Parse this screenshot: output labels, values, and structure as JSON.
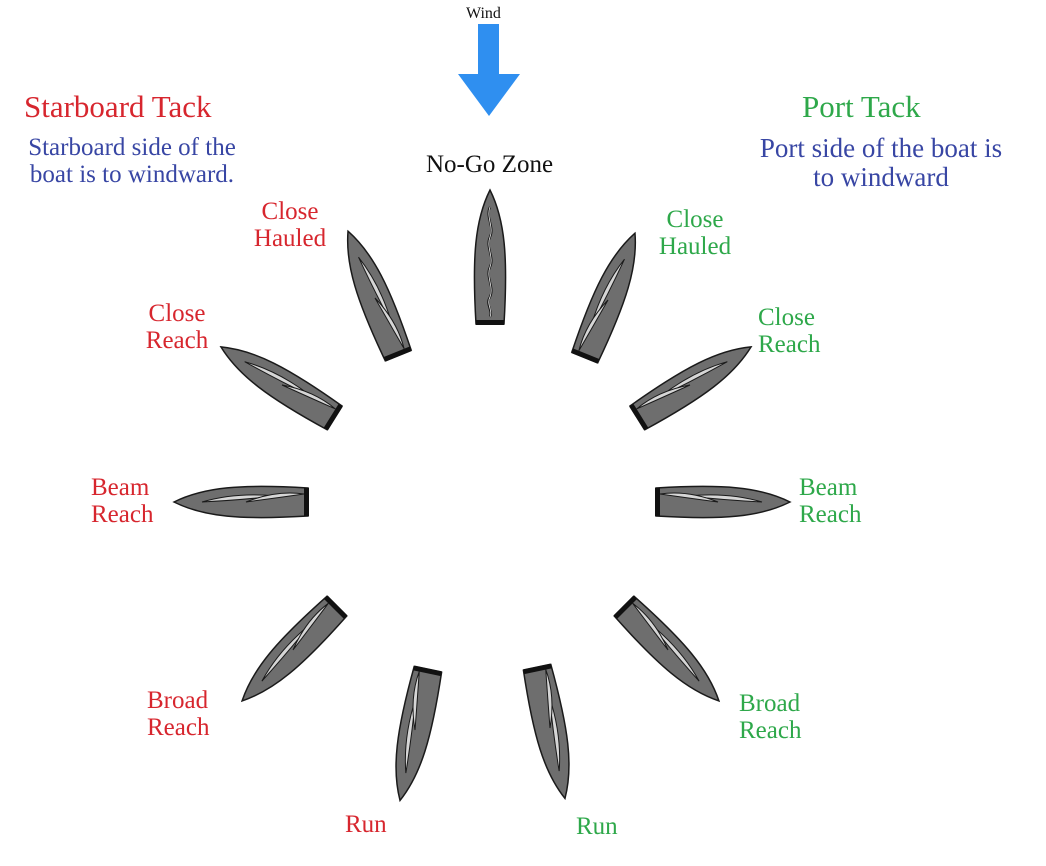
{
  "wind": {
    "label": "Wind",
    "arrow_color": "#2f8ff0"
  },
  "starboard": {
    "title": "Starboard Tack",
    "subtitle_line1": "Starboard side of the",
    "subtitle_line2": "boat is to windward.",
    "color": "#d7262e"
  },
  "port": {
    "title": "Port Tack",
    "subtitle_line1": "Port side of the boat is",
    "subtitle_line2": "to windward",
    "color": "#2ea84a"
  },
  "no_go": {
    "label": "No-Go Zone"
  },
  "points_of_sail": {
    "starboard": {
      "close_hauled": [
        "Close",
        "Hauled"
      ],
      "close_reach": [
        "Close",
        "Reach"
      ],
      "beam_reach": [
        "Beam",
        "Reach"
      ],
      "broad_reach": [
        "Broad",
        "Reach"
      ],
      "run": [
        "Run"
      ]
    },
    "port": {
      "close_hauled": [
        "Close",
        "Hauled"
      ],
      "close_reach": [
        "Close",
        "Reach"
      ],
      "beam_reach": [
        "Beam",
        "Reach"
      ],
      "broad_reach": [
        "Broad",
        "Reach"
      ],
      "run": [
        "Run"
      ]
    }
  },
  "colors": {
    "hull": "#6e6e6e",
    "sail": "#d6d6d6",
    "outline": "#1a1a1a"
  }
}
